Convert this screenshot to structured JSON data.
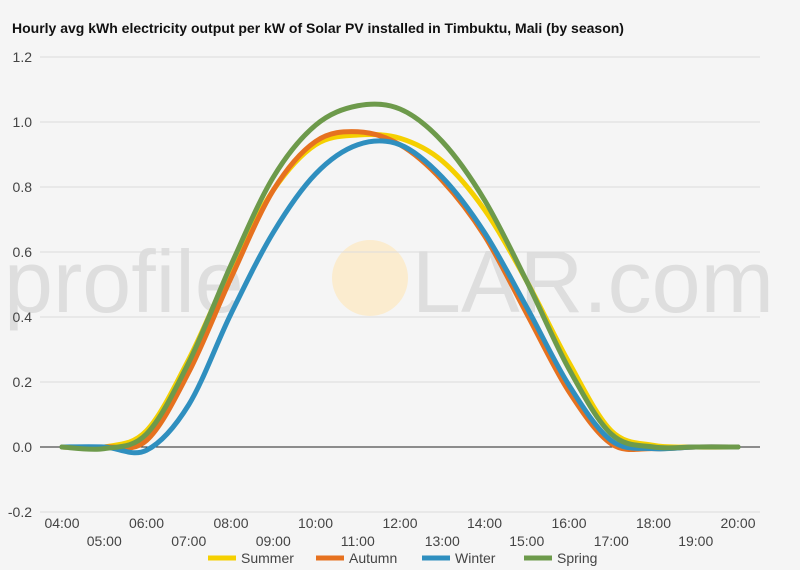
{
  "chart_data": {
    "type": "line",
    "title": "Hourly avg kWh electricity output per kW of Solar PV installed in Timbuktu, Mali (by season)",
    "watermark": {
      "left": "profile",
      "right": "LAR.com"
    },
    "xlabel": "",
    "ylabel": "",
    "x": [
      "04:00",
      "05:00",
      "06:00",
      "07:00",
      "08:00",
      "09:00",
      "10:00",
      "11:00",
      "12:00",
      "13:00",
      "14:00",
      "15:00",
      "16:00",
      "17:00",
      "18:00",
      "19:00",
      "20:00"
    ],
    "ylim": [
      -0.2,
      1.2
    ],
    "yticks": [
      "-0.2",
      "0.0",
      "0.2",
      "0.4",
      "0.6",
      "0.8",
      "1.0",
      "1.2"
    ],
    "grid": true,
    "legend_position": "bottom",
    "series": [
      {
        "name": "Summer",
        "color": "#f5d000",
        "values": [
          0,
          0,
          0.05,
          0.27,
          0.55,
          0.79,
          0.93,
          0.96,
          0.95,
          0.88,
          0.73,
          0.51,
          0.26,
          0.05,
          0.005,
          0,
          0
        ]
      },
      {
        "name": "Autumn",
        "color": "#e6711f",
        "values": [
          0,
          0,
          0.02,
          0.23,
          0.52,
          0.79,
          0.94,
          0.97,
          0.93,
          0.82,
          0.65,
          0.41,
          0.17,
          0.01,
          -0.005,
          0,
          0
        ]
      },
      {
        "name": "Winter",
        "color": "#2f8fbf",
        "values": [
          0,
          0,
          -0.01,
          0.13,
          0.41,
          0.66,
          0.84,
          0.93,
          0.93,
          0.83,
          0.66,
          0.43,
          0.19,
          0.02,
          -0.005,
          0,
          0
        ]
      },
      {
        "name": "Spring",
        "color": "#6d9a4b",
        "values": [
          0,
          -0.005,
          0.04,
          0.26,
          0.56,
          0.83,
          0.99,
          1.05,
          1.04,
          0.94,
          0.76,
          0.51,
          0.24,
          0.04,
          0,
          0,
          0
        ]
      }
    ]
  }
}
